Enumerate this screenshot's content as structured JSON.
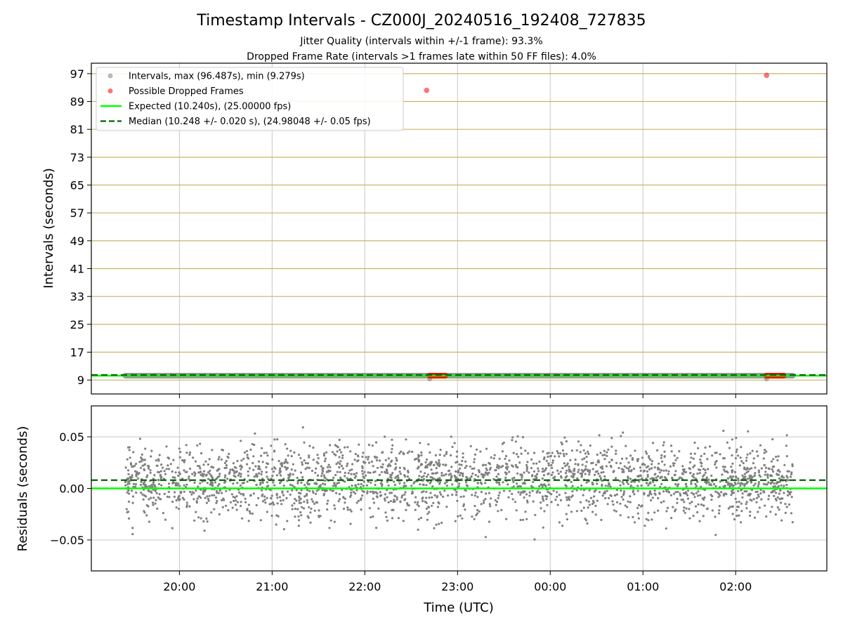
{
  "chart_data": {
    "title": "Timestamp Intervals - CZ000J_20240516_192408_727835",
    "subtitles": [
      "Jitter Quality (intervals within +/-1 frame): 93.3%",
      "Dropped Frame Rate (intervals >1 frames late within 50 FF files): 4.0%"
    ],
    "colors": {
      "intervals": "#808080",
      "dropped": "#ff0000",
      "expected": "#00ff00",
      "median": "#006400",
      "ygrid_top": "#c8b46e",
      "grid": "#c8c8c8"
    },
    "top_panel": {
      "type": "scatter",
      "ylabel": "Intervals (seconds)",
      "ylim": [
        5,
        100
      ],
      "yticks": [
        "9",
        "17",
        "25",
        "33",
        "41",
        "49",
        "57",
        "65",
        "73",
        "81",
        "89",
        "97"
      ],
      "expected": 10.24,
      "median": 10.248,
      "interval_band": {
        "value": 10.25,
        "x_start": "19:25",
        "x_end": "02:37"
      },
      "dropped_clusters": [
        {
          "x_start": "22:42",
          "x_end": "22:52",
          "value": 10.25
        },
        {
          "x_start": "02:20",
          "x_end": "02:31",
          "value": 10.25
        }
      ],
      "outliers": [
        {
          "x": "22:40",
          "value": 92.2,
          "series": "dropped"
        },
        {
          "x": "02:20",
          "value": 96.5,
          "series": "dropped"
        }
      ],
      "legend": [
        {
          "label": "Intervals, max (96.487s), min (9.279s)",
          "kind": "dot",
          "series": "intervals"
        },
        {
          "label": "Possible Dropped Frames",
          "kind": "dot",
          "series": "dropped"
        },
        {
          "label": "Expected (10.240s), (25.00000 fps)",
          "kind": "line",
          "series": "expected"
        },
        {
          "label": "Median (10.248 +/- 0.020 s), (24.98048 +/- 0.05 fps)",
          "kind": "dash",
          "series": "median"
        }
      ]
    },
    "bottom_panel": {
      "type": "scatter",
      "ylabel": "Residuals (seconds)",
      "ylim": [
        -0.08,
        0.08
      ],
      "yticks": [
        "0.05",
        "0.00",
        "−0.05"
      ],
      "expected": 0.0,
      "median": 0.008,
      "residual_sigma": 0.02,
      "point_count": 2500
    },
    "xaxis": {
      "label": "Time (UTC)",
      "range": [
        "19:03",
        "02:59"
      ],
      "ticks": [
        "20:00",
        "21:00",
        "22:00",
        "23:00",
        "00:00",
        "01:00",
        "02:00"
      ],
      "data_range": [
        "19:25",
        "02:37"
      ]
    }
  }
}
